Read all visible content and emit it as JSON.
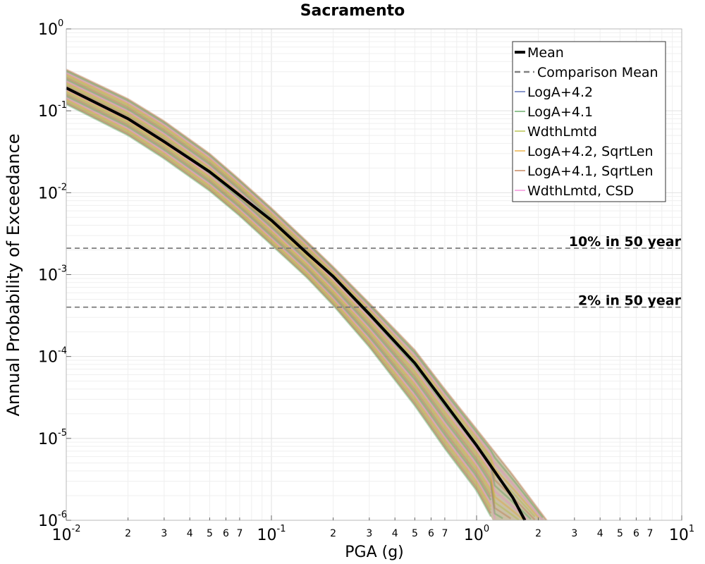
{
  "chart_data": {
    "type": "line",
    "title": "Sacramento",
    "xlabel": "PGA (g)",
    "ylabel": "Annual Probability of Exceedance",
    "xscale": "log",
    "yscale": "log",
    "xlim": [
      0.01,
      10
    ],
    "ylim": [
      1e-06,
      1
    ],
    "x_major_ticks": [
      0.01,
      0.1,
      1,
      10
    ],
    "x_major_tick_labels": [
      {
        "base": "10",
        "exp": "-2"
      },
      {
        "base": "10",
        "exp": "-1"
      },
      {
        "base": "10",
        "exp": "0"
      },
      {
        "base": "10",
        "exp": "1"
      }
    ],
    "x_minor_tick_labels": [
      "2",
      "3",
      "4",
      "5",
      "6",
      "7"
    ],
    "y_major_ticks": [
      1,
      0.1,
      0.01,
      0.001,
      0.0001,
      1e-05,
      1e-06
    ],
    "y_major_tick_labels": [
      {
        "base": "10",
        "exp": "0"
      },
      {
        "base": "10",
        "exp": "-1"
      },
      {
        "base": "10",
        "exp": "-2"
      },
      {
        "base": "10",
        "exp": "-3"
      },
      {
        "base": "10",
        "exp": "-4"
      },
      {
        "base": "10",
        "exp": "-5"
      },
      {
        "base": "10",
        "exp": "-6"
      }
    ],
    "grid": true,
    "legend_position": "top-right",
    "series": [
      {
        "name": "Mean",
        "color": "#000000",
        "style": "solid-thick",
        "x": [
          0.01,
          0.02,
          0.03,
          0.05,
          0.07,
          0.1,
          0.15,
          0.2,
          0.3,
          0.5,
          0.7,
          1.0,
          1.5,
          1.72
        ],
        "y": [
          0.19,
          0.08,
          0.042,
          0.018,
          0.0093,
          0.0046,
          0.0018,
          0.00095,
          0.00033,
          8.3e-05,
          2.7e-05,
          8.2e-06,
          1.9e-06,
          1e-06
        ]
      },
      {
        "name": "Comparison Mean",
        "color": "#808080",
        "style": "dashed",
        "x": [],
        "y": []
      },
      {
        "name": "LogA+4.2",
        "color": "#3a4fa8",
        "style": "solid",
        "x": [],
        "y": []
      },
      {
        "name": "LogA+4.1",
        "color": "#4a9a4a",
        "style": "solid",
        "x": [],
        "y": []
      },
      {
        "name": "WdthLmtd",
        "color": "#a8b62a",
        "style": "solid",
        "x": [],
        "y": []
      },
      {
        "name": "LogA+4.2, SqrtLen",
        "color": "#e6a020",
        "style": "solid",
        "x": [],
        "y": []
      },
      {
        "name": "LogA+4.1, SqrtLen",
        "color": "#b86a3a",
        "style": "solid",
        "x": [],
        "y": []
      },
      {
        "name": "WdthLmtd, CSD",
        "color": "#f07ad2",
        "style": "solid",
        "x": [],
        "y": []
      }
    ],
    "band": {
      "upper": {
        "x": [
          0.01,
          0.02,
          0.03,
          0.05,
          0.07,
          0.1,
          0.15,
          0.2,
          0.3,
          0.5,
          0.7,
          1.0,
          1.5,
          2.2
        ],
        "y": [
          0.32,
          0.14,
          0.075,
          0.03,
          0.0145,
          0.0065,
          0.0025,
          0.00125,
          0.00045,
          0.00012,
          4e-05,
          1.3e-05,
          3.6e-06,
          1e-06
        ]
      },
      "lower": {
        "x": [
          0.01,
          0.02,
          0.03,
          0.05,
          0.07,
          0.1,
          0.15,
          0.2,
          0.3,
          0.5,
          0.7,
          1.0,
          1.2
        ],
        "y": [
          0.12,
          0.05,
          0.026,
          0.0105,
          0.0052,
          0.0023,
          0.0009,
          0.00042,
          0.00013,
          2.5e-05,
          7.5e-06,
          2.3e-06,
          1e-06
        ]
      },
      "colors": [
        "#4a9a4a",
        "#b86a3a",
        "#a8b62a",
        "#e6a020",
        "#f07ad2"
      ]
    },
    "reference_lines": [
      {
        "label": "10% in 50 year",
        "y": 0.0021
      },
      {
        "label": "2% in 50 year",
        "y": 0.0004
      }
    ]
  }
}
